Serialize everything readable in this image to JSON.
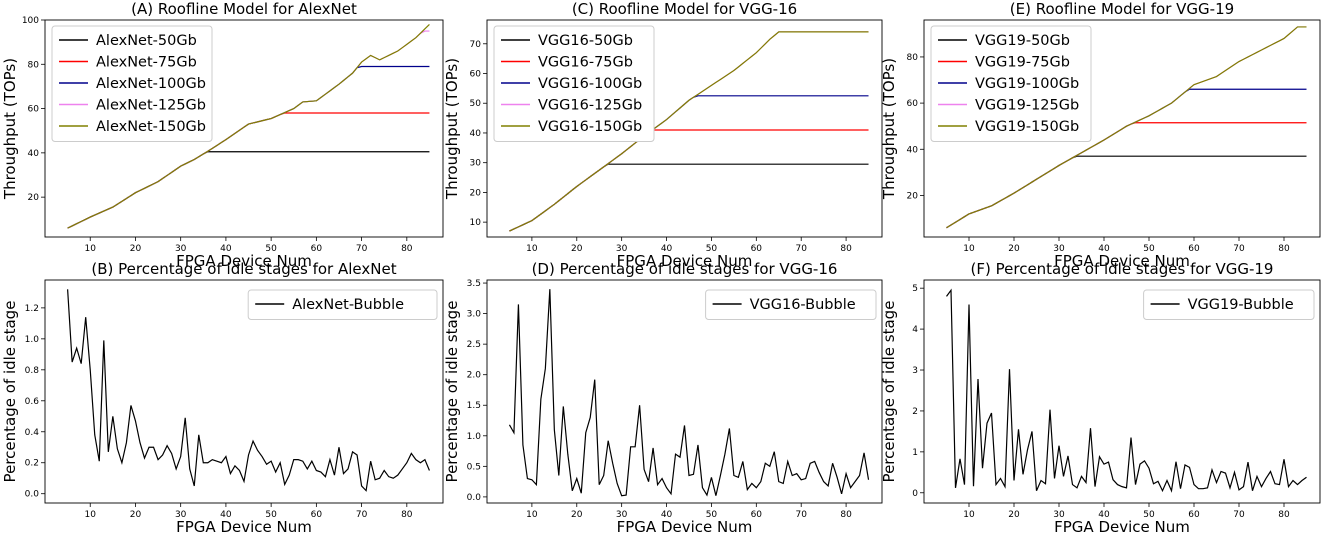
{
  "figure": {
    "panels": [
      {
        "id": "A",
        "title": "(A) Roofline Model for AlexNet",
        "xlabel": "FPGA Device Num",
        "ylabel": "Throughput (TOPs)"
      },
      {
        "id": "C",
        "title": "(C) Roofline Model for VGG-16",
        "xlabel": "FPGA Device Num",
        "ylabel": "Throughput (TOPs)"
      },
      {
        "id": "E",
        "title": "(E) Roofline Model for VGG-19",
        "xlabel": "FPGA Device Num",
        "ylabel": "Throughput (TOPs)"
      },
      {
        "id": "B",
        "title": "(B) Percentage of idle stages for AlexNet",
        "xlabel": "FPGA Device Num",
        "ylabel": "Percentage of idle stage"
      },
      {
        "id": "D",
        "title": "(D) Percentage of idle stages for VGG-16",
        "xlabel": "FPGA Device Num",
        "ylabel": "Percentage of idle stage"
      },
      {
        "id": "F",
        "title": "(F) Percentage of idle stages for VGG-19",
        "xlabel": "FPGA Device Num",
        "ylabel": "Percentage of idle stage"
      }
    ]
  },
  "chart_data": [
    {
      "type": "line",
      "title": "(A) Roofline Model for AlexNet",
      "xlabel": "FPGA Device Num",
      "ylabel": "Throughput (TOPs)",
      "xlim": [
        0,
        88
      ],
      "ylim": [
        2,
        100
      ],
      "xticks": [
        10,
        20,
        30,
        40,
        50,
        60,
        70,
        80
      ],
      "yticks": [
        20,
        40,
        60,
        80,
        100
      ],
      "legend_position": "top-left",
      "x_range": [
        5,
        85
      ],
      "ramp": [
        [
          5,
          6
        ],
        [
          10,
          11
        ],
        [
          15,
          15.5
        ],
        [
          20,
          22
        ],
        [
          25,
          27
        ],
        [
          30,
          34
        ],
        [
          33,
          37
        ],
        [
          37,
          42
        ],
        [
          40,
          46
        ],
        [
          45,
          53
        ],
        [
          50,
          55.5
        ],
        [
          55,
          60
        ],
        [
          57,
          63
        ],
        [
          60,
          63.5
        ],
        [
          65,
          71
        ],
        [
          68,
          76
        ],
        [
          70,
          81
        ],
        [
          72,
          84
        ],
        [
          74,
          82
        ],
        [
          78,
          86
        ],
        [
          82,
          92
        ],
        [
          85,
          98
        ]
      ],
      "series": [
        {
          "name": "AlexNet-50Gb",
          "color": "#000000",
          "cap": 40.5
        },
        {
          "name": "AlexNet-75Gb",
          "color": "#ff0000",
          "cap": 58
        },
        {
          "name": "AlexNet-100Gb",
          "color": "#00008b",
          "cap": 79
        },
        {
          "name": "AlexNet-125Gb",
          "color": "#ee82ee",
          "cap": 95
        },
        {
          "name": "AlexNet-150Gb",
          "color": "#808000",
          "cap": null
        }
      ]
    },
    {
      "type": "line",
      "title": "(C) Roofline Model for VGG-16",
      "xlabel": "FPGA Device Num",
      "ylabel": "Throughput (TOPs)",
      "xlim": [
        0,
        88
      ],
      "ylim": [
        5,
        78
      ],
      "xticks": [
        10,
        20,
        30,
        40,
        50,
        60,
        70,
        80
      ],
      "yticks": [
        10,
        20,
        30,
        40,
        50,
        60,
        70
      ],
      "legend_position": "top-left",
      "x_range": [
        5,
        85
      ],
      "ramp": [
        [
          5,
          7
        ],
        [
          10,
          10.5
        ],
        [
          15,
          16
        ],
        [
          20,
          22
        ],
        [
          25,
          27.5
        ],
        [
          30,
          33
        ],
        [
          35,
          39
        ],
        [
          40,
          44.5
        ],
        [
          45,
          51
        ],
        [
          50,
          56
        ],
        [
          55,
          61
        ],
        [
          60,
          67
        ],
        [
          63,
          71.5
        ],
        [
          65,
          74
        ],
        [
          85,
          74
        ]
      ],
      "series": [
        {
          "name": "VGG16-50Gb",
          "color": "#000000",
          "cap": 29.5
        },
        {
          "name": "VGG16-75Gb",
          "color": "#ff0000",
          "cap": 41
        },
        {
          "name": "VGG16-100Gb",
          "color": "#00008b",
          "cap": 52.5
        },
        {
          "name": "VGG16-125Gb",
          "color": "#ee82ee",
          "cap": null
        },
        {
          "name": "VGG16-150Gb",
          "color": "#808000",
          "cap": null
        }
      ]
    },
    {
      "type": "line",
      "title": "(E) Roofline Model for VGG-19",
      "xlabel": "FPGA Device Num",
      "ylabel": "Throughput (TOPs)",
      "xlim": [
        0,
        88
      ],
      "ylim": [
        2,
        96
      ],
      "xticks": [
        10,
        20,
        30,
        40,
        50,
        60,
        70,
        80
      ],
      "yticks": [
        20,
        40,
        60,
        80
      ],
      "legend_position": "top-left",
      "x_range": [
        5,
        85
      ],
      "ramp": [
        [
          5,
          6
        ],
        [
          10,
          12
        ],
        [
          15,
          15.5
        ],
        [
          20,
          21
        ],
        [
          25,
          27
        ],
        [
          30,
          33
        ],
        [
          35,
          38.5
        ],
        [
          40,
          44
        ],
        [
          45,
          50
        ],
        [
          50,
          54.5
        ],
        [
          55,
          60
        ],
        [
          60,
          68
        ],
        [
          65,
          71.5
        ],
        [
          70,
          78
        ],
        [
          75,
          83
        ],
        [
          80,
          88
        ],
        [
          83,
          93
        ],
        [
          85,
          93
        ]
      ],
      "series": [
        {
          "name": "VGG19-50Gb",
          "color": "#000000",
          "cap": 37
        },
        {
          "name": "VGG19-75Gb",
          "color": "#ff0000",
          "cap": 51.5
        },
        {
          "name": "VGG19-100Gb",
          "color": "#00008b",
          "cap": 66
        },
        {
          "name": "VGG19-125Gb",
          "color": "#ee82ee",
          "cap": null
        },
        {
          "name": "VGG19-150Gb",
          "color": "#808000",
          "cap": null
        }
      ]
    },
    {
      "type": "line",
      "title": "(B) Percentage of idle stages for AlexNet",
      "xlabel": "FPGA Device Num",
      "ylabel": "Percentage of idle stage",
      "xlim": [
        0,
        88
      ],
      "ylim": [
        -0.06,
        1.38
      ],
      "xticks": [
        10,
        20,
        30,
        40,
        50,
        60,
        70,
        80
      ],
      "yticks": [
        0.0,
        0.2,
        0.4,
        0.6,
        0.8,
        1.0,
        1.2
      ],
      "legend_position": "top-right",
      "series": [
        {
          "name": "AlexNet-Bubble",
          "color": "#000000",
          "x": [
            5,
            6,
            7,
            8,
            9,
            10,
            11,
            12,
            13,
            14,
            15,
            16,
            17,
            18,
            19,
            20,
            21,
            22,
            23,
            24,
            25,
            26,
            27,
            28,
            29,
            30,
            31,
            32,
            33,
            34,
            35,
            36,
            37,
            38,
            39,
            40,
            41,
            42,
            43,
            44,
            45,
            46,
            47,
            48,
            49,
            50,
            51,
            52,
            53,
            54,
            55,
            56,
            57,
            58,
            59,
            60,
            61,
            62,
            63,
            64,
            65,
            66,
            67,
            68,
            69,
            70,
            71,
            72,
            73,
            74,
            75,
            76,
            77,
            78,
            79,
            80,
            81,
            82,
            83,
            84,
            85
          ],
          "y": [
            1.32,
            0.85,
            0.94,
            0.84,
            1.14,
            0.8,
            0.38,
            0.21,
            0.99,
            0.27,
            0.5,
            0.29,
            0.2,
            0.33,
            0.57,
            0.47,
            0.33,
            0.23,
            0.3,
            0.3,
            0.22,
            0.25,
            0.31,
            0.26,
            0.16,
            0.24,
            0.49,
            0.16,
            0.05,
            0.38,
            0.2,
            0.2,
            0.22,
            0.21,
            0.2,
            0.24,
            0.13,
            0.18,
            0.15,
            0.08,
            0.25,
            0.34,
            0.28,
            0.24,
            0.19,
            0.21,
            0.14,
            0.2,
            0.06,
            0.12,
            0.22,
            0.22,
            0.21,
            0.16,
            0.21,
            0.15,
            0.14,
            0.11,
            0.22,
            0.12,
            0.3,
            0.13,
            0.16,
            0.27,
            0.25,
            0.05,
            0.02,
            0.21,
            0.09,
            0.1,
            0.15,
            0.11,
            0.1,
            0.12,
            0.16,
            0.2,
            0.26,
            0.22,
            0.2,
            0.22,
            0.15
          ]
        }
      ]
    },
    {
      "type": "line",
      "title": "(D) Percentage of idle stages for VGG-16",
      "xlabel": "FPGA Device Num",
      "ylabel": "Percentage of idle stage",
      "xlim": [
        0,
        88
      ],
      "ylim": [
        -0.1,
        3.55
      ],
      "xticks": [
        10,
        20,
        30,
        40,
        50,
        60,
        70,
        80
      ],
      "yticks": [
        0.0,
        0.5,
        1.0,
        1.5,
        2.0,
        2.5,
        3.0,
        3.5
      ],
      "legend_position": "top-right",
      "series": [
        {
          "name": "VGG16-Bubble",
          "color": "#000000",
          "x": [
            5,
            6,
            7,
            8,
            9,
            10,
            11,
            12,
            13,
            14,
            15,
            16,
            17,
            18,
            19,
            20,
            21,
            22,
            23,
            24,
            25,
            26,
            27,
            28,
            29,
            30,
            31,
            32,
            33,
            34,
            35,
            36,
            37,
            38,
            39,
            40,
            41,
            42,
            43,
            44,
            45,
            46,
            47,
            48,
            49,
            50,
            51,
            52,
            53,
            54,
            55,
            56,
            57,
            58,
            59,
            60,
            61,
            62,
            63,
            64,
            65,
            66,
            67,
            68,
            69,
            70,
            71,
            72,
            73,
            74,
            75,
            76,
            77,
            78,
            79,
            80,
            81,
            82,
            83,
            84,
            85
          ],
          "y": [
            1.18,
            1.05,
            3.15,
            0.85,
            0.3,
            0.28,
            0.2,
            1.6,
            2.1,
            3.4,
            1.1,
            0.35,
            1.48,
            0.7,
            0.1,
            0.3,
            0.06,
            1.05,
            1.3,
            1.92,
            0.2,
            0.35,
            0.92,
            0.55,
            0.22,
            0.02,
            0.03,
            0.82,
            0.82,
            1.5,
            0.45,
            0.25,
            0.8,
            0.2,
            0.3,
            0.15,
            0.05,
            0.7,
            0.65,
            1.17,
            0.35,
            0.37,
            0.85,
            0.15,
            0.03,
            0.32,
            0.02,
            0.35,
            0.7,
            1.12,
            0.35,
            0.32,
            0.58,
            0.12,
            0.22,
            0.15,
            0.25,
            0.55,
            0.5,
            0.74,
            0.25,
            0.22,
            0.58,
            0.35,
            0.38,
            0.28,
            0.3,
            0.55,
            0.58,
            0.4,
            0.25,
            0.18,
            0.55,
            0.32,
            0.05,
            0.38,
            0.15,
            0.25,
            0.35,
            0.72,
            0.28
          ]
        }
      ]
    },
    {
      "type": "line",
      "title": "(F) Percentage of idle stages for VGG-19",
      "xlabel": "FPGA Device Num",
      "ylabel": "Percentage of idle stage",
      "xlim": [
        0,
        88
      ],
      "ylim": [
        -0.25,
        5.2
      ],
      "xticks": [
        10,
        20,
        30,
        40,
        50,
        60,
        70,
        80
      ],
      "yticks": [
        0,
        1,
        2,
        3,
        4,
        5
      ],
      "legend_position": "top-right",
      "series": [
        {
          "name": "VGG19-Bubble",
          "color": "#000000",
          "x": [
            5,
            6,
            7,
            8,
            9,
            10,
            11,
            12,
            13,
            14,
            15,
            16,
            17,
            18,
            19,
            20,
            21,
            22,
            23,
            24,
            25,
            26,
            27,
            28,
            29,
            30,
            31,
            32,
            33,
            34,
            35,
            36,
            37,
            38,
            39,
            40,
            41,
            42,
            43,
            44,
            45,
            46,
            47,
            48,
            49,
            50,
            51,
            52,
            53,
            54,
            55,
            56,
            57,
            58,
            59,
            60,
            61,
            62,
            63,
            64,
            65,
            66,
            67,
            68,
            69,
            70,
            71,
            72,
            73,
            74,
            75,
            76,
            77,
            78,
            79,
            80,
            81,
            82,
            83,
            84,
            85
          ],
          "y": [
            4.8,
            4.95,
            0.12,
            0.83,
            0.2,
            4.6,
            0.16,
            2.78,
            0.6,
            1.7,
            1.95,
            0.2,
            0.35,
            0.15,
            3.02,
            0.3,
            1.55,
            0.45,
            1.05,
            1.5,
            0.05,
            0.3,
            0.22,
            2.03,
            0.35,
            1.15,
            0.4,
            0.9,
            0.2,
            0.12,
            0.4,
            0.25,
            1.58,
            0.15,
            0.88,
            0.7,
            0.75,
            0.32,
            0.2,
            0.15,
            0.12,
            1.35,
            0.2,
            0.7,
            0.78,
            0.6,
            0.22,
            0.28,
            0.05,
            0.3,
            0.05,
            0.76,
            0.1,
            0.68,
            0.62,
            0.2,
            0.1,
            0.1,
            0.12,
            0.56,
            0.25,
            0.52,
            0.48,
            0.12,
            0.5,
            0.07,
            0.15,
            0.75,
            0.05,
            0.4,
            0.15,
            0.35,
            0.52,
            0.22,
            0.2,
            0.82,
            0.15,
            0.3,
            0.2,
            0.3,
            0.38
          ]
        }
      ]
    }
  ]
}
